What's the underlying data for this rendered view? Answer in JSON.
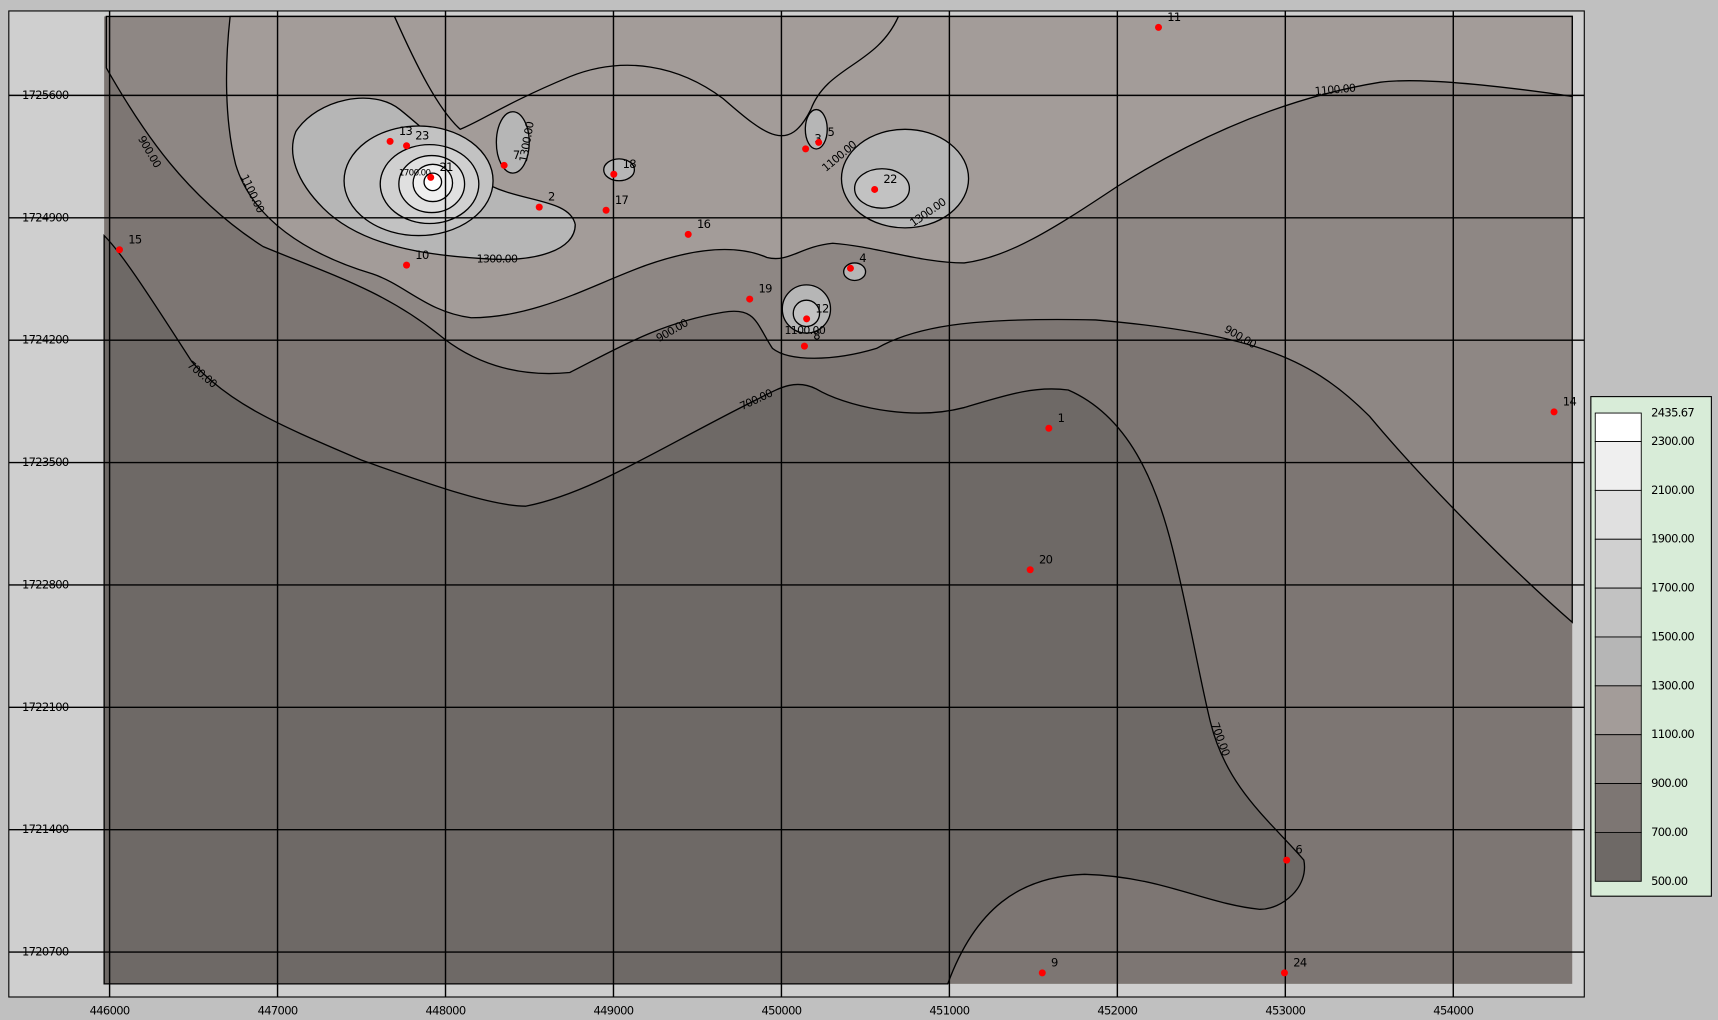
{
  "chart_data": {
    "type": "contour",
    "xlim": [
      445400,
      454780
    ],
    "ylim": [
      1720443,
      1726083
    ],
    "xticks": [
      446000,
      447000,
      448000,
      449000,
      450000,
      451000,
      452000,
      453000,
      454000
    ],
    "yticks": [
      1720700,
      1721400,
      1722100,
      1722800,
      1723500,
      1724200,
      1724900,
      1725600
    ],
    "grid": true,
    "point_color": "#ff0000",
    "points": [
      {
        "label": "1",
        "x": 451592,
        "y": 1723696
      },
      {
        "label": "2",
        "x": 448558,
        "y": 1724961
      },
      {
        "label": "3",
        "x": 450144,
        "y": 1725294
      },
      {
        "label": "4",
        "x": 450411,
        "y": 1724611
      },
      {
        "label": "5",
        "x": 450222,
        "y": 1725331
      },
      {
        "label": "6",
        "x": 453008,
        "y": 1721226
      },
      {
        "label": "7",
        "x": 448349,
        "y": 1725200
      },
      {
        "label": "8",
        "x": 450137,
        "y": 1724166
      },
      {
        "label": "9",
        "x": 451553,
        "y": 1720581
      },
      {
        "label": "10",
        "x": 447768,
        "y": 1724629
      },
      {
        "label": "11",
        "x": 452245,
        "y": 1725989
      },
      {
        "label": "12",
        "x": 450150,
        "y": 1724322
      },
      {
        "label": "13",
        "x": 447670,
        "y": 1725337
      },
      {
        "label": "14",
        "x": 454600,
        "y": 1723790
      },
      {
        "label": "15",
        "x": 446059,
        "y": 1724717
      },
      {
        "label": "16",
        "x": 449445,
        "y": 1724805
      },
      {
        "label": "17",
        "x": 448956,
        "y": 1724943
      },
      {
        "label": "18",
        "x": 449002,
        "y": 1725149
      },
      {
        "label": "19",
        "x": 449811,
        "y": 1724435
      },
      {
        "label": "20",
        "x": 451481,
        "y": 1722887
      },
      {
        "label": "21",
        "x": 447912,
        "y": 1725131
      },
      {
        "label": "22",
        "x": 450555,
        "y": 1725062
      },
      {
        "label": "23",
        "x": 447768,
        "y": 1725312
      },
      {
        "label": "24",
        "x": 452995,
        "y": 1720581
      }
    ],
    "contour_labels": [
      {
        "value": 900,
        "label": "900.00"
      },
      {
        "value": 1100,
        "label": "1100.00"
      },
      {
        "value": 700,
        "label": "700.00"
      },
      {
        "value": 1300,
        "label": "1300.00"
      },
      {
        "value": 1300,
        "label": "1300.00"
      },
      {
        "value": 1100,
        "label": "1100.00"
      },
      {
        "value": 1300,
        "label": "1300.00"
      },
      {
        "value": 900,
        "label": "900.00"
      },
      {
        "value": 700,
        "label": "700.00"
      },
      {
        "value": 900,
        "label": "900.00"
      },
      {
        "value": 1100,
        "label": "1100.00"
      },
      {
        "value": 700,
        "label": "700.00"
      },
      {
        "value": 1100,
        "label": "1100.00"
      },
      {
        "value": 1700,
        "label": "1700.00"
      }
    ],
    "legend": {
      "levels": [
        {
          "value": 2435.67,
          "label": "2435.67"
        },
        {
          "value": 2300,
          "label": "2300.00"
        },
        {
          "value": 2100,
          "label": "2100.00"
        },
        {
          "value": 1900,
          "label": "1900.00"
        },
        {
          "value": 1700,
          "label": "1700.00"
        },
        {
          "value": 1500,
          "label": "1500.00"
        },
        {
          "value": 1300,
          "label": "1300.00"
        },
        {
          "value": 1100,
          "label": "1100.00"
        },
        {
          "value": 900,
          "label": "900.00"
        },
        {
          "value": 700,
          "label": "700.00"
        },
        {
          "value": 500,
          "label": "500.00"
        }
      ],
      "colors": [
        "#ffffff",
        "#efefef",
        "#e0e0e0",
        "#d0d0d0",
        "#c2c2c2",
        "#b6b6b6",
        "#a39c99",
        "#8e8784",
        "#7d7673",
        "#6e6966"
      ]
    }
  }
}
